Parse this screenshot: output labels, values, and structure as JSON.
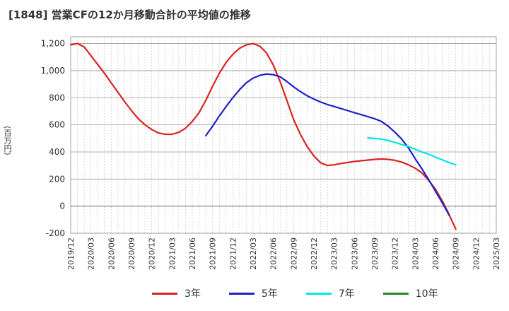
{
  "chart_data": {
    "type": "line",
    "title": "[1848]  営業CFの12か月移動合計の平均値の推移",
    "ylabel": "(百万円)",
    "xlabel": "",
    "ylim": [
      -200,
      1250
    ],
    "xlim": [
      "2019/12",
      "2025/03"
    ],
    "x_ticks": [
      "2019/12",
      "2020/03",
      "2020/06",
      "2020/09",
      "2020/12",
      "2021/03",
      "2021/06",
      "2021/09",
      "2021/12",
      "2022/03",
      "2022/06",
      "2022/09",
      "2022/12",
      "2023/03",
      "2023/06",
      "2023/09",
      "2023/12",
      "2024/03",
      "2024/06",
      "2024/09",
      "2024/12",
      "2025/03"
    ],
    "y_ticks": [
      -200,
      0,
      200,
      400,
      600,
      800,
      "1,000",
      "1,200"
    ],
    "grid": true,
    "legend_position": "bottom",
    "series": [
      {
        "name": "3年",
        "color": "#dd2222",
        "points": [
          [
            "2019/12",
            1190
          ],
          [
            "2020/01",
            1200
          ],
          [
            "2020/02",
            1175
          ],
          [
            "2020/03",
            1110
          ],
          [
            "2020/04",
            1045
          ],
          [
            "2020/05",
            980
          ],
          [
            "2020/06",
            910
          ],
          [
            "2020/07",
            840
          ],
          [
            "2020/08",
            770
          ],
          [
            "2020/09",
            705
          ],
          [
            "2020/10",
            645
          ],
          [
            "2020/11",
            600
          ],
          [
            "2020/12",
            565
          ],
          [
            "2021/01",
            540
          ],
          [
            "2021/02",
            530
          ],
          [
            "2021/03",
            530
          ],
          [
            "2021/04",
            545
          ],
          [
            "2021/05",
            575
          ],
          [
            "2021/06",
            625
          ],
          [
            "2021/07",
            690
          ],
          [
            "2021/08",
            780
          ],
          [
            "2021/09",
            885
          ],
          [
            "2021/10",
            980
          ],
          [
            "2021/11",
            1060
          ],
          [
            "2021/12",
            1120
          ],
          [
            "2022/01",
            1165
          ],
          [
            "2022/02",
            1190
          ],
          [
            "2022/03",
            1200
          ],
          [
            "2022/04",
            1180
          ],
          [
            "2022/05",
            1130
          ],
          [
            "2022/06",
            1040
          ],
          [
            "2022/07",
            920
          ],
          [
            "2022/08",
            780
          ],
          [
            "2022/09",
            640
          ],
          [
            "2022/10",
            530
          ],
          [
            "2022/11",
            440
          ],
          [
            "2022/12",
            370
          ],
          [
            "2023/01",
            320
          ],
          [
            "2023/02",
            300
          ],
          [
            "2023/03",
            305
          ],
          [
            "2023/04",
            315
          ],
          [
            "2023/05",
            322
          ],
          [
            "2023/06",
            330
          ],
          [
            "2023/07",
            335
          ],
          [
            "2023/08",
            340
          ],
          [
            "2023/09",
            345
          ],
          [
            "2023/10",
            348
          ],
          [
            "2023/11",
            345
          ],
          [
            "2023/12",
            338
          ],
          [
            "2024/01",
            325
          ],
          [
            "2024/02",
            305
          ],
          [
            "2024/03",
            280
          ],
          [
            "2024/04",
            245
          ],
          [
            "2024/05",
            190
          ],
          [
            "2024/06",
            125
          ],
          [
            "2024/07",
            40
          ],
          [
            "2024/08",
            -60
          ],
          [
            "2024/09",
            -170
          ]
        ]
      },
      {
        "name": "5年",
        "color": "#1f1fcc",
        "points": [
          [
            "2021/08",
            520
          ],
          [
            "2021/09",
            590
          ],
          [
            "2021/10",
            665
          ],
          [
            "2021/11",
            735
          ],
          [
            "2021/12",
            800
          ],
          [
            "2022/01",
            860
          ],
          [
            "2022/02",
            910
          ],
          [
            "2022/03",
            945
          ],
          [
            "2022/04",
            965
          ],
          [
            "2022/05",
            975
          ],
          [
            "2022/06",
            970
          ],
          [
            "2022/07",
            955
          ],
          [
            "2022/08",
            920
          ],
          [
            "2022/09",
            880
          ],
          [
            "2022/10",
            845
          ],
          [
            "2022/11",
            815
          ],
          [
            "2022/12",
            790
          ],
          [
            "2023/01",
            768
          ],
          [
            "2023/02",
            750
          ],
          [
            "2023/03",
            735
          ],
          [
            "2023/04",
            720
          ],
          [
            "2023/05",
            705
          ],
          [
            "2023/06",
            690
          ],
          [
            "2023/07",
            675
          ],
          [
            "2023/08",
            660
          ],
          [
            "2023/09",
            645
          ],
          [
            "2023/10",
            625
          ],
          [
            "2023/11",
            590
          ],
          [
            "2023/12",
            545
          ],
          [
            "2024/01",
            495
          ],
          [
            "2024/02",
            430
          ],
          [
            "2024/03",
            350
          ],
          [
            "2024/04",
            275
          ],
          [
            "2024/05",
            195
          ],
          [
            "2024/06",
            110
          ],
          [
            "2024/07",
            25
          ],
          [
            "2024/08",
            -65
          ]
        ]
      },
      {
        "name": "7年",
        "color": "#00e5e5",
        "points": [
          [
            "2023/08",
            505
          ],
          [
            "2023/09",
            500
          ],
          [
            "2023/10",
            495
          ],
          [
            "2023/11",
            485
          ],
          [
            "2023/12",
            470
          ],
          [
            "2024/01",
            455
          ],
          [
            "2024/02",
            440
          ],
          [
            "2024/03",
            420
          ],
          [
            "2024/04",
            400
          ],
          [
            "2024/05",
            382
          ],
          [
            "2024/06",
            362
          ],
          [
            "2024/07",
            342
          ],
          [
            "2024/08",
            322
          ],
          [
            "2024/09",
            305
          ]
        ]
      },
      {
        "name": "10年",
        "color": "#228b22",
        "points": []
      }
    ]
  }
}
